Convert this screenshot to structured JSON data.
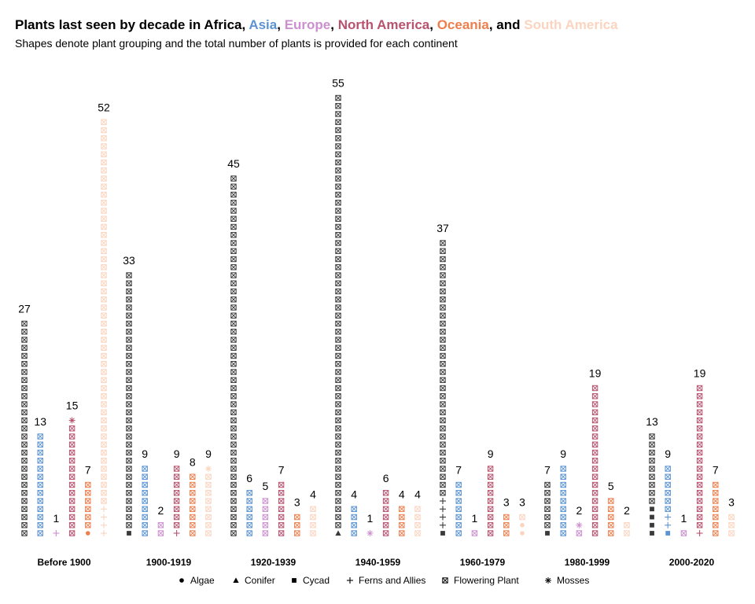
{
  "title": {
    "prefix": "Plants last seen by decade in ",
    "continents": [
      "Africa",
      "Asia",
      "Europe",
      "North America",
      "Oceania",
      "South America"
    ],
    "separators": [
      ", ",
      ", ",
      ", ",
      ", ",
      ", and ",
      ""
    ]
  },
  "subtitle": "Shapes denote plant grouping and the total number of plants is provided for each continent",
  "colors": {
    "Africa": "#000000",
    "Asia": "#5b93d3",
    "Europe": "#cc8fcf",
    "North America": "#b8526e",
    "Oceania": "#ee7e4c",
    "South America": "#fbd4bf"
  },
  "chart_data": {
    "type": "waffle-column",
    "title": "Plants last seen by decade in Africa, Asia, Europe, North America, Oceania, and South America",
    "subtitle": "Shapes denote plant grouping and the total number of plants is provided for each continent",
    "categories": [
      "Before 1900",
      "1900-1919",
      "1920-1939",
      "1940-1959",
      "1960-1979",
      "1980-1999",
      "2000-2020"
    ],
    "continents": [
      "Africa",
      "Asia",
      "Europe",
      "North America",
      "Oceania",
      "South America"
    ],
    "legend": {
      "placement": "bottom",
      "entries": [
        {
          "label": "Algae",
          "shape": "circle"
        },
        {
          "label": "Conifer",
          "shape": "triangle"
        },
        {
          "label": "Cycad",
          "shape": "square"
        },
        {
          "label": "Ferns and Allies",
          "shape": "plus"
        },
        {
          "label": "Flowering Plant",
          "shape": "boxed-x"
        },
        {
          "label": "Mosses",
          "shape": "asterisk"
        }
      ]
    },
    "grid": false,
    "groups": [
      {
        "decade": "Before 1900",
        "bars": [
          {
            "continent": "Africa",
            "total": 27,
            "Flowering Plant": 27
          },
          {
            "continent": "Asia",
            "total": 13,
            "Flowering Plant": 13
          },
          {
            "continent": "Europe",
            "total": 1,
            "Ferns and Allies": 1
          },
          {
            "continent": "North America",
            "total": 15,
            "Flowering Plant": 14,
            "Mosses": 1
          },
          {
            "continent": "Oceania",
            "total": 7,
            "Algae": 1,
            "Flowering Plant": 6
          },
          {
            "continent": "South America",
            "total": 52,
            "Ferns and Allies": 4,
            "Flowering Plant": 48
          }
        ]
      },
      {
        "decade": "1900-1919",
        "bars": [
          {
            "continent": "Africa",
            "total": 33,
            "Cycad": 1,
            "Flowering Plant": 32
          },
          {
            "continent": "Asia",
            "total": 9,
            "Flowering Plant": 9
          },
          {
            "continent": "Europe",
            "total": 2,
            "Flowering Plant": 2
          },
          {
            "continent": "North America",
            "total": 9,
            "Ferns and Allies": 1,
            "Flowering Plant": 8
          },
          {
            "continent": "Oceania",
            "total": 8,
            "Flowering Plant": 8
          },
          {
            "continent": "South America",
            "total": 9,
            "Flowering Plant": 8,
            "Mosses": 1
          }
        ]
      },
      {
        "decade": "1920-1939",
        "bars": [
          {
            "continent": "Africa",
            "total": 45,
            "Flowering Plant": 45
          },
          {
            "continent": "Asia",
            "total": 6,
            "Flowering Plant": 6
          },
          {
            "continent": "Europe",
            "total": 5,
            "Flowering Plant": 5
          },
          {
            "continent": "North America",
            "total": 7,
            "Flowering Plant": 7
          },
          {
            "continent": "Oceania",
            "total": 3,
            "Flowering Plant": 3
          },
          {
            "continent": "South America",
            "total": 4,
            "Flowering Plant": 4
          }
        ]
      },
      {
        "decade": "1940-1959",
        "bars": [
          {
            "continent": "Africa",
            "total": 55,
            "Conifer": 1,
            "Flowering Plant": 54
          },
          {
            "continent": "Asia",
            "total": 4,
            "Flowering Plant": 4
          },
          {
            "continent": "Europe",
            "total": 1,
            "Mosses": 1
          },
          {
            "continent": "North America",
            "total": 6,
            "Flowering Plant": 6
          },
          {
            "continent": "Oceania",
            "total": 4,
            "Flowering Plant": 4
          },
          {
            "continent": "South America",
            "total": 4,
            "Flowering Plant": 4
          }
        ]
      },
      {
        "decade": "1960-1979",
        "bars": [
          {
            "continent": "Africa",
            "total": 37,
            "Cycad": 1,
            "Ferns and Allies": 4,
            "Flowering Plant": 32
          },
          {
            "continent": "Asia",
            "total": 7,
            "Flowering Plant": 7
          },
          {
            "continent": "Europe",
            "total": 1,
            "Flowering Plant": 1
          },
          {
            "continent": "North America",
            "total": 9,
            "Flowering Plant": 9
          },
          {
            "continent": "Oceania",
            "total": 3,
            "Flowering Plant": 3
          },
          {
            "continent": "South America",
            "total": 3,
            "Algae": 2,
            "Flowering Plant": 1
          }
        ]
      },
      {
        "decade": "1980-1999",
        "bars": [
          {
            "continent": "Africa",
            "total": 7,
            "Cycad": 1,
            "Flowering Plant": 6
          },
          {
            "continent": "Asia",
            "total": 9,
            "Flowering Plant": 9
          },
          {
            "continent": "Europe",
            "total": 2,
            "Flowering Plant": 1,
            "Mosses": 1
          },
          {
            "continent": "North America",
            "total": 19,
            "Flowering Plant": 19
          },
          {
            "continent": "Oceania",
            "total": 5,
            "Flowering Plant": 5
          },
          {
            "continent": "South America",
            "total": 2,
            "Flowering Plant": 2
          }
        ]
      },
      {
        "decade": "2000-2020",
        "bars": [
          {
            "continent": "Africa",
            "total": 13,
            "Cycad": 4,
            "Flowering Plant": 9
          },
          {
            "continent": "Asia",
            "total": 9,
            "Cycad": 1,
            "Ferns and Allies": 2,
            "Flowering Plant": 6
          },
          {
            "continent": "Europe",
            "total": 1,
            "Flowering Plant": 1
          },
          {
            "continent": "North America",
            "total": 19,
            "Ferns and Allies": 1,
            "Flowering Plant": 18
          },
          {
            "continent": "Oceania",
            "total": 7,
            "Flowering Plant": 7
          },
          {
            "continent": "South America",
            "total": 3,
            "Flowering Plant": 3
          }
        ]
      }
    ]
  }
}
